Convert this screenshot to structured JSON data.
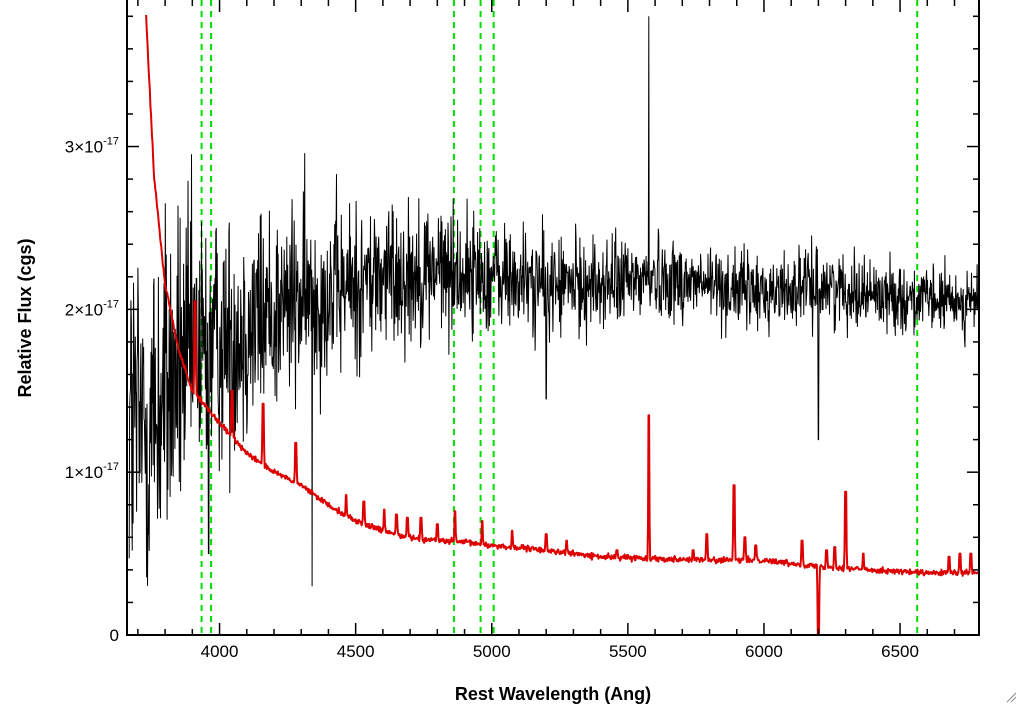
{
  "chart_data": {
    "type": "line",
    "xlabel": "Rest Wavelength (Ang)",
    "ylabel": "Relative Flux (cgs)",
    "xlim": [
      3660,
      6790
    ],
    "ylim": [
      0,
      3.9e-17
    ],
    "x_ticks": [
      {
        "value": 4000,
        "label": "4000"
      },
      {
        "value": 4500,
        "label": "4500"
      },
      {
        "value": 5000,
        "label": "5000"
      },
      {
        "value": 5500,
        "label": "5500"
      },
      {
        "value": 6000,
        "label": "6000"
      },
      {
        "value": 6500,
        "label": "6500"
      }
    ],
    "y_ticks": [
      {
        "value": 0,
        "mantissa": "0",
        "exponent": ""
      },
      {
        "value": 1e-17,
        "mantissa": "1×10",
        "exponent": "-17"
      },
      {
        "value": 2e-17,
        "mantissa": "2×10",
        "exponent": "-17"
      },
      {
        "value": 3e-17,
        "mantissa": "3×10",
        "exponent": "-17"
      }
    ],
    "grid": false,
    "legend": "none",
    "vertical_markers": {
      "color": "#00dd00",
      "style": "dashed",
      "x": [
        3934,
        3969,
        4861,
        4959,
        5007,
        6563
      ]
    },
    "series": [
      {
        "color": "#000000",
        "kind": "noisy spectrum",
        "baseline": {
          "x": [
            3680,
            3720,
            3760,
            3800,
            3900,
            4000,
            4200,
            4400,
            4600,
            4800,
            5000,
            5200,
            5400,
            5600,
            5800,
            6000,
            6200,
            6400,
            6600,
            6780
          ],
          "y": [
            1.3e-17,
            1.25e-17,
            1.35e-17,
            1.5e-17,
            1.7e-17,
            1.8e-17,
            2e-17,
            2.1e-17,
            2.2e-17,
            2.25e-17,
            2.2e-17,
            2.15e-17,
            2.15e-17,
            2.2e-17,
            2.15e-17,
            2.1e-17,
            2.15e-17,
            2.1e-17,
            2.05e-17,
            2.05e-17
          ]
        },
        "noise_amplitude": {
          "x": [
            3680,
            3800,
            4000,
            4400,
            5000,
            5500,
            6000,
            6780
          ],
          "y": [
            1.6e-17,
            1.4e-17,
            1e-17,
            7e-18,
            4.5e-18,
            3.5e-18,
            3e-18,
            2.5e-18
          ]
        },
        "spikes": [
          {
            "x": 5577,
            "y": 3.8e-17
          },
          {
            "x": 5200,
            "y": 1.45e-17
          },
          {
            "x": 6200,
            "y": 1.2e-17
          },
          {
            "x": 4340,
            "y": 3e-18
          },
          {
            "x": 3960,
            "y": 5e-18
          }
        ]
      },
      {
        "color": "#dd0000",
        "kind": "sky spectrum",
        "continuum": {
          "x": [
            3730,
            3760,
            3800,
            3850,
            3900,
            3950,
            4000,
            4100,
            4200,
            4300,
            4400,
            4500,
            4600,
            4700,
            4800,
            4900,
            5000,
            5200,
            5400,
            5600,
            5800,
            6000,
            6200,
            6400,
            6600,
            6780
          ],
          "y": [
            3.8e-17,
            2.8e-17,
            2.15e-17,
            1.75e-17,
            1.5e-17,
            1.4e-17,
            1.3e-17,
            1.12e-17,
            1e-17,
            9.2e-18,
            8e-18,
            7e-18,
            6.4e-18,
            6e-18,
            5.8e-18,
            5.7e-18,
            5.5e-18,
            5.2e-18,
            4.8e-18,
            4.7e-18,
            4.6e-18,
            4.6e-18,
            4.2e-18,
            4e-18,
            3.8e-18,
            3.8e-18
          ]
        },
        "emission_lines": [
          {
            "x": 3910,
            "y": 2.05e-17
          },
          {
            "x": 4046,
            "y": 1.5e-17
          },
          {
            "x": 4160,
            "y": 1.42e-17
          },
          {
            "x": 4280,
            "y": 1.18e-17
          },
          {
            "x": 4465,
            "y": 8.6e-18
          },
          {
            "x": 4530,
            "y": 8.2e-18
          },
          {
            "x": 4605,
            "y": 7.7e-18
          },
          {
            "x": 4650,
            "y": 7.4e-18
          },
          {
            "x": 4690,
            "y": 7.2e-18
          },
          {
            "x": 4740,
            "y": 7.2e-18
          },
          {
            "x": 4800,
            "y": 6.8e-18
          },
          {
            "x": 4865,
            "y": 7.6e-18
          },
          {
            "x": 4965,
            "y": 7e-18
          },
          {
            "x": 5075,
            "y": 6.4e-18
          },
          {
            "x": 5200,
            "y": 6.2e-18
          },
          {
            "x": 5275,
            "y": 5.8e-18
          },
          {
            "x": 5460,
            "y": 5.2e-18
          },
          {
            "x": 5577,
            "y": 1.35e-17
          },
          {
            "x": 5740,
            "y": 5.2e-18
          },
          {
            "x": 5790,
            "y": 6.2e-18
          },
          {
            "x": 5890,
            "y": 9.2e-18
          },
          {
            "x": 5930,
            "y": 6e-18
          },
          {
            "x": 5970,
            "y": 5.5e-18
          },
          {
            "x": 6140,
            "y": 5.8e-18
          },
          {
            "x": 6230,
            "y": 5.2e-18
          },
          {
            "x": 6260,
            "y": 5.4e-18
          },
          {
            "x": 6300,
            "y": 8.8e-18
          },
          {
            "x": 6365,
            "y": 5e-18
          },
          {
            "x": 6680,
            "y": 4.8e-18
          },
          {
            "x": 6720,
            "y": 5e-18
          },
          {
            "x": 6760,
            "y": 5e-18
          }
        ],
        "absorption_lines": [
          {
            "x": 6200,
            "y": -5e-19
          }
        ]
      }
    ]
  }
}
